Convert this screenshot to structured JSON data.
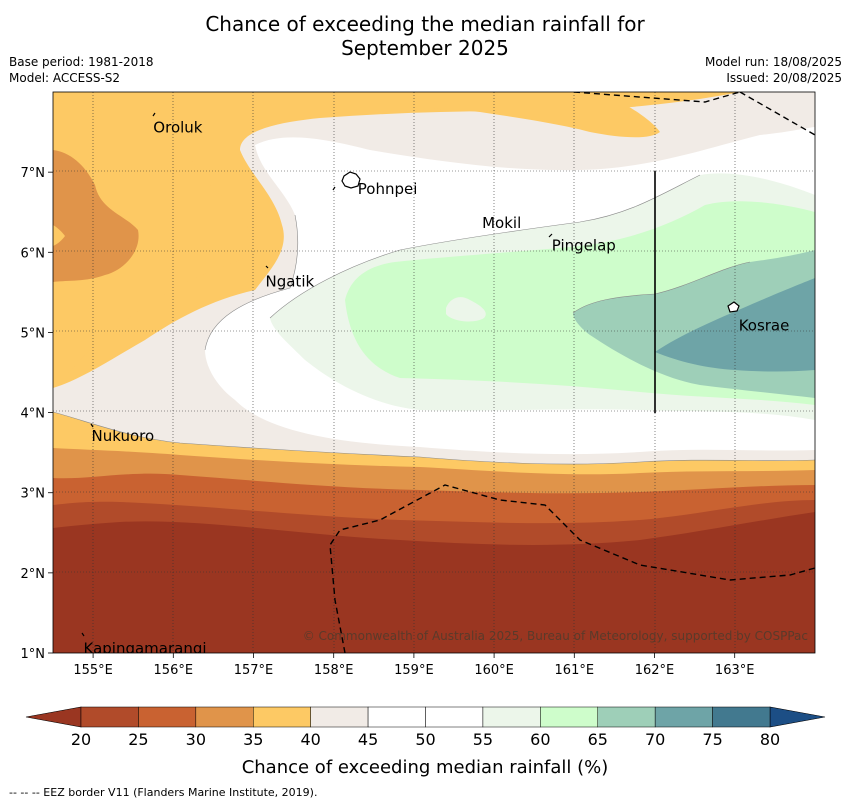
{
  "title_line1": "Chance of exceeding the median rainfall for",
  "title_line2": "September 2025",
  "meta": {
    "base_period": "Base period: 1981-2018",
    "model": "Model: ACCESS-S2",
    "model_run": "Model run: 18/08/2025",
    "issued": "Issued: 20/08/2025"
  },
  "places": [
    {
      "name": "Oroluk",
      "lon": 155.75,
      "lat": 7.57
    },
    {
      "name": "Pohnpei",
      "lon": 158.3,
      "lat": 6.8
    },
    {
      "name": "Mokil",
      "lon": 159.85,
      "lat": 6.38
    },
    {
      "name": "Pingelap",
      "lon": 160.72,
      "lat": 6.1
    },
    {
      "name": "Ngatik",
      "lon": 157.15,
      "lat": 5.65
    },
    {
      "name": "Kosrae",
      "lon": 163.05,
      "lat": 5.1
    },
    {
      "name": "Nukuoro",
      "lon": 154.98,
      "lat": 3.72
    },
    {
      "name": "Kapingamarangi",
      "lon": 154.88,
      "lat": 1.07
    }
  ],
  "x_ticks": [
    "155°E",
    "156°E",
    "157°E",
    "158°E",
    "159°E",
    "160°E",
    "161°E",
    "162°E",
    "163°E"
  ],
  "y_ticks": [
    "7°N",
    "6°N",
    "5°N",
    "4°N",
    "3°N",
    "2°N",
    "1°N"
  ],
  "copyright": "© Commonwealth of Australia 2025, Bureau of Meteorology, supported by COSPPac",
  "colorbar": {
    "label": "Chance of exceeding median rainfall (%)",
    "ticks": [
      "20",
      "25",
      "30",
      "35",
      "40",
      "45",
      "50",
      "55",
      "60",
      "65",
      "70",
      "75",
      "80"
    ],
    "colors": [
      "#b14b2a",
      "#c96231",
      "#e0944a",
      "#fdc964",
      "#f1ebe6",
      "#ffffff",
      "#ffffff",
      "#ecf6ea",
      "#cefdcb",
      "#9ecfb8",
      "#6ea4a7",
      "#42798f"
    ],
    "under_color": "#9a3621",
    "over_color": "#1c4e85"
  },
  "footer": "--  --  -- EEZ border V11 (Flanders Marine Institute, 2019)."
}
